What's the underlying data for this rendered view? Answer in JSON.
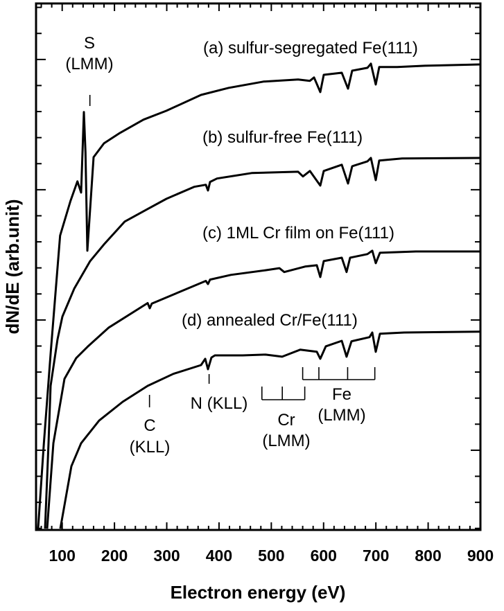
{
  "chart_data": {
    "type": "line",
    "title": "",
    "xlabel": "Electron energy (eV)",
    "ylabel": "dN/dE (arb.unit)",
    "xlim": [
      50,
      900
    ],
    "ylim": [
      -3.06,
      17.15
    ],
    "x_major_ticks": [
      100,
      200,
      300,
      400,
      500,
      600,
      700,
      800,
      900
    ],
    "x_tick_labels": [
      "100",
      "200",
      "300",
      "400",
      "500",
      "600",
      "700",
      "800",
      "900"
    ],
    "x_minor_step": 20,
    "y_major_ticks": [
      0,
      5,
      10,
      15
    ],
    "y_minor_step": 1,
    "y_tick_labels_shown": false,
    "grid": false,
    "line_color": "#000000",
    "series": [
      {
        "name": "(a) sulfur-segregated Fe(111)",
        "points": [
          [
            54,
            -3.0
          ],
          [
            65,
            0.27
          ],
          [
            78.3,
            3.8
          ],
          [
            96,
            8.24
          ],
          [
            115.9,
            9.57
          ],
          [
            129.2,
            10.32
          ],
          [
            136.2,
            9.89
          ],
          [
            141.5,
            12.98
          ],
          [
            144.5,
            11.44
          ],
          [
            148.1,
            7.66
          ],
          [
            160.1,
            11.25
          ],
          [
            180,
            11.78
          ],
          [
            210.4,
            12.18
          ],
          [
            255.5,
            12.69
          ],
          [
            299.3,
            13.03
          ],
          [
            365.6,
            13.64
          ],
          [
            418.6,
            13.91
          ],
          [
            484.9,
            14.15
          ],
          [
            551.2,
            14.23
          ],
          [
            573.8,
            14.18
          ],
          [
            581.7,
            14.31
          ],
          [
            593.7,
            13.75
          ],
          [
            600.3,
            14.41
          ],
          [
            634.8,
            14.49
          ],
          [
            646.7,
            13.88
          ],
          [
            654.7,
            14.57
          ],
          [
            683.8,
            14.68
          ],
          [
            690.5,
            14.84
          ],
          [
            699.7,
            14.04
          ],
          [
            706.4,
            14.71
          ],
          [
            740.8,
            14.71
          ],
          [
            793.9,
            14.76
          ],
          [
            900,
            14.81
          ]
        ]
      },
      {
        "name": "(b) sulfur-free Fe(111)",
        "points": [
          [
            67.2,
            -3.01
          ],
          [
            73.9,
            0.27
          ],
          [
            77.8,
            2.47
          ],
          [
            91.1,
            4.26
          ],
          [
            100.4,
            5.13
          ],
          [
            122.9,
            6.2
          ],
          [
            153.4,
            7.26
          ],
          [
            179.9,
            7.9
          ],
          [
            219.7,
            8.78
          ],
          [
            263.5,
            9.26
          ],
          [
            299.3,
            9.65
          ],
          [
            352.3,
            10.11
          ],
          [
            374.8,
            10.19
          ],
          [
            378.8,
            9.97
          ],
          [
            382.8,
            10.3
          ],
          [
            396.1,
            10.43
          ],
          [
            462.4,
            10.64
          ],
          [
            551.2,
            10.69
          ],
          [
            560.5,
            10.51
          ],
          [
            573.8,
            10.72
          ],
          [
            593.7,
            10.16
          ],
          [
            600.3,
            10.72
          ],
          [
            634.8,
            10.96
          ],
          [
            646.7,
            10.24
          ],
          [
            654.7,
            10.9
          ],
          [
            683.8,
            11.09
          ],
          [
            690.5,
            11.22
          ],
          [
            699.7,
            10.37
          ],
          [
            706.4,
            11.12
          ],
          [
            750.1,
            11.2
          ],
          [
            900,
            11.22
          ]
        ]
      },
      {
        "name": "(c) 1ML Cr film on Fe(111)",
        "points": [
          [
            71.2,
            -3.01
          ],
          [
            83.2,
            0.27
          ],
          [
            104.4,
            2.74
          ],
          [
            126.9,
            3.54
          ],
          [
            149.5,
            3.99
          ],
          [
            189.2,
            4.71
          ],
          [
            263.5,
            5.65
          ],
          [
            267.5,
            5.45
          ],
          [
            271.5,
            5.63
          ],
          [
            374.8,
            6.5
          ],
          [
            378.8,
            6.38
          ],
          [
            382.8,
            6.55
          ],
          [
            422.6,
            6.73
          ],
          [
            488.9,
            6.91
          ],
          [
            515.4,
            6.99
          ],
          [
            524.7,
            6.84
          ],
          [
            564.5,
            7.05
          ],
          [
            587,
            7.1
          ],
          [
            593.7,
            6.65
          ],
          [
            600.3,
            7.26
          ],
          [
            634.8,
            7.39
          ],
          [
            644,
            6.84
          ],
          [
            650.7,
            7.39
          ],
          [
            683.8,
            7.53
          ],
          [
            693.1,
            7.66
          ],
          [
            699.7,
            7.18
          ],
          [
            707.7,
            7.58
          ],
          [
            776.6,
            7.63
          ],
          [
            900,
            7.63
          ]
        ]
      },
      {
        "name": "(d) annealed Cr/Fe(111)",
        "points": [
          [
            96.4,
            -3.01
          ],
          [
            117.6,
            -0.61
          ],
          [
            136.2,
            0.27
          ],
          [
            170.7,
            1.14
          ],
          [
            215.8,
            1.86
          ],
          [
            263.5,
            2.47
          ],
          [
            312.5,
            2.93
          ],
          [
            365.6,
            3.27
          ],
          [
            373.5,
            3.51
          ],
          [
            378.8,
            3.11
          ],
          [
            385.5,
            3.56
          ],
          [
            392.1,
            3.64
          ],
          [
            445.1,
            3.64
          ],
          [
            488.9,
            3.67
          ],
          [
            520.7,
            3.59
          ],
          [
            555.2,
            3.86
          ],
          [
            587,
            3.78
          ],
          [
            593.7,
            3.51
          ],
          [
            604.3,
            3.99
          ],
          [
            634.8,
            4.2
          ],
          [
            644,
            3.59
          ],
          [
            653.3,
            4.18
          ],
          [
            687.8,
            4.34
          ],
          [
            693.1,
            4.52
          ],
          [
            699.7,
            3.78
          ],
          [
            707.7,
            4.47
          ],
          [
            754.1,
            4.52
          ],
          [
            900,
            4.55
          ]
        ]
      }
    ],
    "annotations": {
      "s": {
        "element": "S",
        "transition": "(LMM)",
        "energies": [
          153
        ]
      },
      "c": {
        "element": "C",
        "transition": "(KLL)",
        "energies": [
          267
        ]
      },
      "n": {
        "label": "N (KLL)",
        "energies": [
          381
        ]
      },
      "cr": {
        "element": "Cr",
        "transition": "(LMM)",
        "energies": [
          482,
          521,
          564
        ]
      },
      "fe": {
        "element": "Fe",
        "transition": "(LMM)",
        "energies": [
          560,
          591,
          646,
          698
        ]
      }
    }
  }
}
